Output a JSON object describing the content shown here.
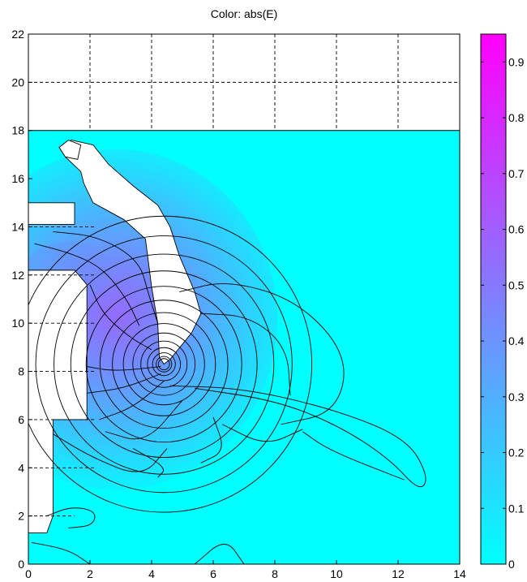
{
  "chart_data": {
    "type": "heatmap",
    "title": "Color: abs(E)",
    "xlabel": "",
    "ylabel": "",
    "xlim": [
      0,
      14
    ],
    "ylim": [
      0,
      22
    ],
    "x_ticks": [
      0,
      2,
      4,
      6,
      8,
      10,
      12,
      14
    ],
    "y_ticks": [
      0,
      2,
      4,
      6,
      8,
      10,
      12,
      14,
      16,
      18,
      20,
      22
    ],
    "grid": true,
    "grid_style": "dashed",
    "colormap": "cool",
    "colormap_low": "#00ffff",
    "colormap_high": "#ff00ff",
    "colorbar": {
      "range": [
        0,
        0.95
      ],
      "ticks": [
        0,
        0.1,
        0.2,
        0.3,
        0.4,
        0.5,
        0.6,
        0.7,
        0.8,
        0.9
      ]
    },
    "field_peak": {
      "x": 4.4,
      "y": 8.3,
      "value": 0.95
    },
    "domain_top_y": 18,
    "background_value": 0.0
  }
}
